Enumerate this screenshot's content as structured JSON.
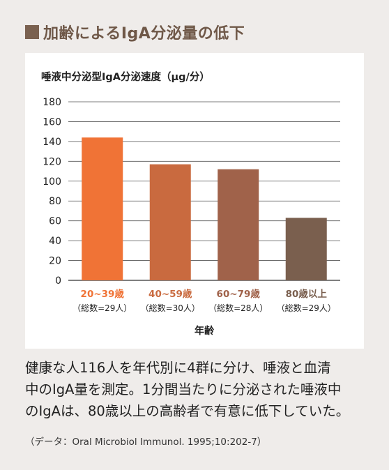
{
  "heading": {
    "text": "加齢によるIgA分泌量の低下"
  },
  "chart_data": {
    "type": "bar",
    "title": "唾液中分泌型IgA分泌速度（μg/分）",
    "xlabel": "年齢",
    "ylabel": "",
    "ylim": [
      0,
      180
    ],
    "yticks": [
      0,
      20,
      40,
      60,
      80,
      100,
      120,
      140,
      160,
      180
    ],
    "grid": true,
    "categories": [
      "20~39歳",
      "40~59歳",
      "60~79歳",
      "80歳以上"
    ],
    "sublabels": [
      "（総数=29人）",
      "（総数=30人）",
      "（総数=28人）",
      "（総数=29人）"
    ],
    "values": [
      144,
      117,
      112,
      63
    ],
    "colors": [
      "#f07336",
      "#c96a3f",
      "#a0624a",
      "#7a5f4e"
    ]
  },
  "caption": {
    "lines": [
      "健康な人116人を年代別に4群に分け、唾液と血清",
      "中のIgA量を測定。1分間当たりに分泌された唾液中",
      "のIgAは、80歳以上の高齢者で有意に低下していた。"
    ]
  },
  "source": {
    "text": "（データ：Oral Microbiol Immunol. 1995;10:202-7）"
  }
}
